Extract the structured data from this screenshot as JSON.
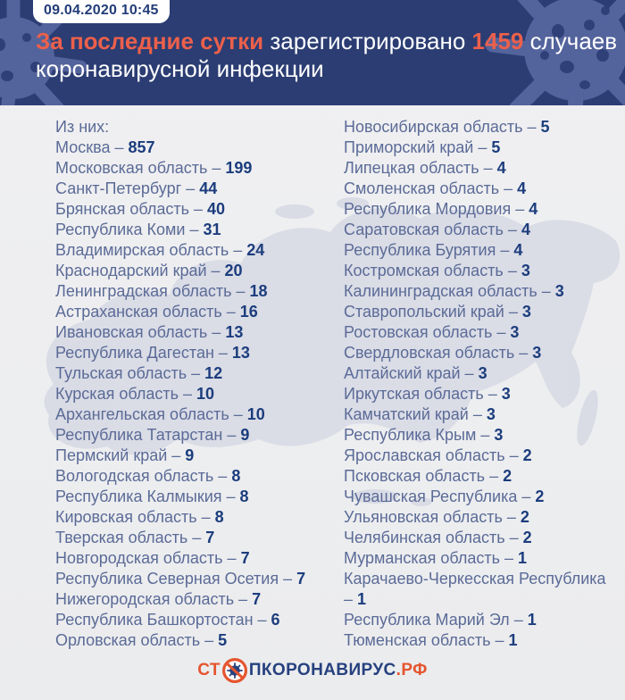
{
  "meta": {
    "timestamp": "09.04.2020 10:45"
  },
  "headline": {
    "highlight": "За последние сутки",
    "middle": "зарегистрировано",
    "count": "1459",
    "after_count": "случаев",
    "line2": "коронавирусной инфекции"
  },
  "list": {
    "intro": "Из них:",
    "separator": "–",
    "left": [
      {
        "name": "Москва",
        "value": "857"
      },
      {
        "name": "Московская область",
        "value": "199"
      },
      {
        "name": "Санкт-Петербург",
        "value": "44"
      },
      {
        "name": "Брянская область",
        "value": "40"
      },
      {
        "name": "Республика Коми",
        "value": "31"
      },
      {
        "name": "Владимирская область",
        "value": "24"
      },
      {
        "name": "Краснодарский край",
        "value": "20"
      },
      {
        "name": "Ленинградская область",
        "value": "18"
      },
      {
        "name": "Астраханская область",
        "value": "16"
      },
      {
        "name": "Ивановская область",
        "value": "13"
      },
      {
        "name": "Республика Дагестан",
        "value": "13"
      },
      {
        "name": "Тульская область",
        "value": "12"
      },
      {
        "name": "Курская область",
        "value": "10"
      },
      {
        "name": "Архангельская область",
        "value": "10"
      },
      {
        "name": "Республика Татарстан",
        "value": "9"
      },
      {
        "name": "Пермский край",
        "value": "9"
      },
      {
        "name": "Вологодская область",
        "value": "8"
      },
      {
        "name": "Республика Калмыкия",
        "value": "8"
      },
      {
        "name": "Кировская область",
        "value": "8"
      },
      {
        "name": "Тверская область",
        "value": "7"
      },
      {
        "name": "Новгородская область",
        "value": "7"
      },
      {
        "name": "Республика Северная Осетия",
        "value": "7"
      },
      {
        "name": "Нижегородская область",
        "value": "7"
      },
      {
        "name": "Республика Башкортостан",
        "value": "6"
      },
      {
        "name": "Орловская область",
        "value": "5"
      }
    ],
    "right": [
      {
        "name": "Новосибирская область",
        "value": "5"
      },
      {
        "name": "Приморский край",
        "value": "5"
      },
      {
        "name": "Липецкая область",
        "value": "4"
      },
      {
        "name": "Смоленская область",
        "value": "4"
      },
      {
        "name": "Республика Мордовия",
        "value": "4"
      },
      {
        "name": "Саратовская область",
        "value": "4"
      },
      {
        "name": "Республика Бурятия",
        "value": "4"
      },
      {
        "name": "Костромская область",
        "value": "3"
      },
      {
        "name": "Калининградская область",
        "value": "3"
      },
      {
        "name": "Ставропольский край",
        "value": "3"
      },
      {
        "name": "Ростовская область",
        "value": "3"
      },
      {
        "name": "Свердловская область",
        "value": "3"
      },
      {
        "name": "Алтайский край",
        "value": "3"
      },
      {
        "name": "Иркутская область",
        "value": "3"
      },
      {
        "name": "Камчатский край",
        "value": "3"
      },
      {
        "name": "Республика Крым",
        "value": "3"
      },
      {
        "name": "Ярославская область",
        "value": "2"
      },
      {
        "name": "Псковская область",
        "value": "2"
      },
      {
        "name": "Чувашская Республика",
        "value": "2"
      },
      {
        "name": "Ульяновская область",
        "value": "2"
      },
      {
        "name": "Челябинская область",
        "value": "2"
      },
      {
        "name": "Мурманская область",
        "value": "1"
      },
      {
        "name": "Карачаево-Черкесская Республика",
        "value": "1"
      },
      {
        "name": "Республика Марий Эл",
        "value": "1"
      },
      {
        "name": "Тюменская область",
        "value": "1"
      }
    ]
  },
  "footer": {
    "logo_prefix": "СТ",
    "logo_icon": "no-virus-icon",
    "logo_middle": "ПКОРОНАВИРУС",
    "logo_suffix": ".РФ"
  },
  "colors": {
    "header_bg": "#2b3d73",
    "header_decor": "#5e6da7",
    "accent_orange": "#ec604b",
    "logo_orange": "#e4552f",
    "region_name": "#5b6b97",
    "region_value": "#1c3d7d",
    "body_bg": "#edeef0",
    "map_fill": "#d6d8e4"
  },
  "chart_data": {
    "type": "table",
    "title": "За последние сутки зарегистрировано 1459 случаев коронавирусной инфекции",
    "timestamp": "09.04.2020 10:45",
    "total_new_cases": 1459,
    "categories": [
      "Москва",
      "Московская область",
      "Санкт-Петербург",
      "Брянская область",
      "Республика Коми",
      "Владимирская область",
      "Краснодарский край",
      "Ленинградская область",
      "Астраханская область",
      "Ивановская область",
      "Республика Дагестан",
      "Тульская область",
      "Курская область",
      "Архангельская область",
      "Республика Татарстан",
      "Пермский край",
      "Вологодская область",
      "Республика Калмыкия",
      "Кировская область",
      "Тверская область",
      "Новгородская область",
      "Республика Северная Осетия",
      "Нижегородская область",
      "Республика Башкортостан",
      "Орловская область",
      "Новосибирская область",
      "Приморский край",
      "Липецкая область",
      "Смоленская область",
      "Республика Мордовия",
      "Саратовская область",
      "Республика Бурятия",
      "Костромская область",
      "Калининградская область",
      "Ставропольский край",
      "Ростовская область",
      "Свердловская область",
      "Алтайский край",
      "Иркутская область",
      "Камчатский край",
      "Республика Крым",
      "Ярославская область",
      "Псковская область",
      "Чувашская Республика",
      "Ульяновская область",
      "Челябинская область",
      "Мурманская область",
      "Карачаево-Черкесская Республика",
      "Республика Марий Эл",
      "Тюменская область"
    ],
    "values": [
      857,
      199,
      44,
      40,
      31,
      24,
      20,
      18,
      16,
      13,
      13,
      12,
      10,
      10,
      9,
      9,
      8,
      8,
      8,
      7,
      7,
      7,
      7,
      6,
      5,
      5,
      5,
      4,
      4,
      4,
      4,
      4,
      3,
      3,
      3,
      3,
      3,
      3,
      3,
      3,
      3,
      2,
      2,
      2,
      2,
      2,
      1,
      1,
      1,
      1
    ]
  }
}
